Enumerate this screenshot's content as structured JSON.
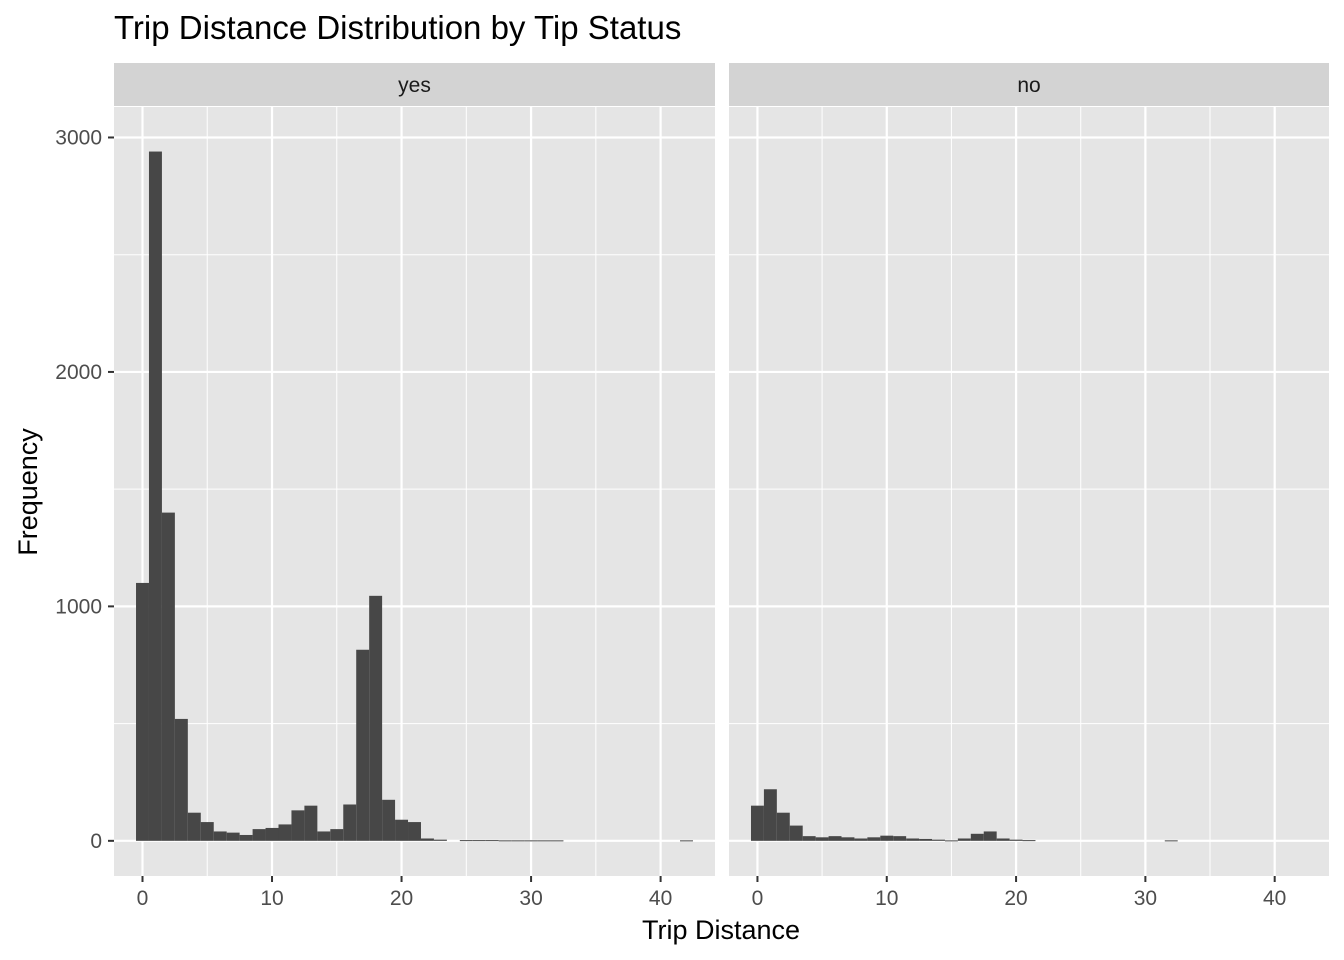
{
  "chart_data": {
    "type": "bar",
    "title": "Trip Distance Distribution by Tip Status",
    "xlabel": "Trip Distance",
    "ylabel": "Frequency",
    "xlim": [
      -2.2,
      44.2
    ],
    "ylim": [
      -150,
      3130
    ],
    "x_ticks": [
      0,
      10,
      20,
      30,
      40
    ],
    "y_ticks": [
      0,
      1000,
      2000,
      3000
    ],
    "bin_width": 1,
    "bin_start": -0.5,
    "colors": {
      "bar": "#474747",
      "panel_bg": "#e5e5e5",
      "strip_bg": "#d3d3d3",
      "grid": "#ffffff"
    },
    "facets": [
      {
        "label": "yes",
        "values": [
          1100,
          2940,
          1400,
          520,
          120,
          80,
          40,
          35,
          25,
          50,
          55,
          70,
          130,
          150,
          40,
          50,
          155,
          815,
          1045,
          175,
          90,
          80,
          10,
          5,
          0,
          3,
          3,
          3,
          2,
          2,
          2,
          2,
          2,
          0,
          0,
          0,
          0,
          0,
          0,
          0,
          0,
          0,
          2
        ]
      },
      {
        "label": "no",
        "values": [
          150,
          220,
          120,
          65,
          20,
          15,
          20,
          15,
          10,
          15,
          22,
          20,
          10,
          8,
          5,
          2,
          10,
          30,
          40,
          10,
          5,
          3,
          0,
          0,
          0,
          0,
          0,
          0,
          0,
          0,
          0,
          0,
          2,
          0,
          0,
          0,
          0,
          0,
          0,
          0,
          0,
          0,
          0
        ]
      }
    ]
  }
}
